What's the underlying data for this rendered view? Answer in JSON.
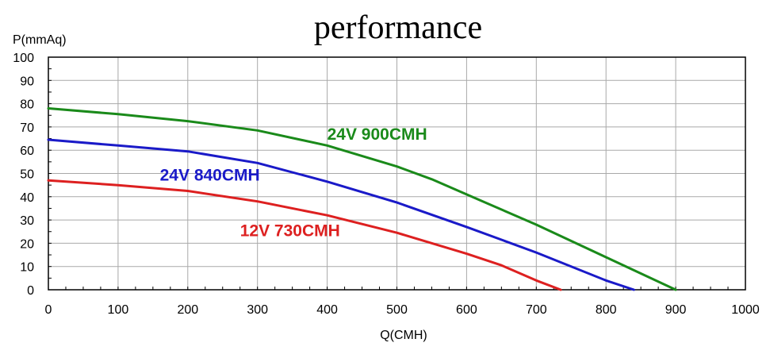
{
  "chart_data": {
    "type": "line",
    "title": "performance",
    "xlabel": "Q(CMH)",
    "ylabel": "P(mmAq)",
    "xlim": [
      0,
      1000
    ],
    "ylim": [
      0,
      100
    ],
    "x_ticks": [
      0,
      100,
      200,
      300,
      400,
      500,
      600,
      700,
      800,
      900,
      1000
    ],
    "y_ticks": [
      0,
      10,
      20,
      30,
      40,
      50,
      60,
      70,
      80,
      90,
      100
    ],
    "x_tick_labels": [
      "0",
      "100",
      "200",
      "300",
      "400",
      "500",
      "600",
      "700",
      "800",
      "900",
      "1000"
    ],
    "y_tick_labels": [
      "0",
      "10",
      "20",
      "30",
      "40",
      "50",
      "60",
      "70",
      "80",
      "90",
      "100"
    ],
    "grid": true,
    "series": [
      {
        "name": "24V 900CMH",
        "color": "#1a8a1a",
        "points": [
          [
            0,
            78
          ],
          [
            100,
            75.5
          ],
          [
            200,
            72.5
          ],
          [
            300,
            68.5
          ],
          [
            400,
            62
          ],
          [
            500,
            53
          ],
          [
            550,
            47.5
          ],
          [
            600,
            41
          ],
          [
            700,
            28
          ],
          [
            800,
            14
          ],
          [
            900,
            0
          ]
        ]
      },
      {
        "name": "24V 840CMH",
        "color": "#1a1ac8",
        "points": [
          [
            0,
            64.5
          ],
          [
            100,
            62
          ],
          [
            200,
            59.5
          ],
          [
            300,
            54.5
          ],
          [
            400,
            46.5
          ],
          [
            500,
            37.5
          ],
          [
            600,
            27
          ],
          [
            700,
            16
          ],
          [
            800,
            4
          ],
          [
            840,
            0
          ]
        ]
      },
      {
        "name": "12V 730CMH",
        "color": "#dd2020",
        "points": [
          [
            0,
            47
          ],
          [
            100,
            45
          ],
          [
            200,
            42.5
          ],
          [
            300,
            38
          ],
          [
            400,
            32
          ],
          [
            500,
            24.5
          ],
          [
            600,
            15.5
          ],
          [
            650,
            10.5
          ],
          [
            700,
            4
          ],
          [
            735,
            0
          ]
        ]
      }
    ],
    "annotations": [
      {
        "text": "24V 900CMH",
        "x": 400,
        "y": 64.5,
        "color": "#1a8a1a"
      },
      {
        "text": "24V 840CMH",
        "x": 160,
        "y": 47,
        "color": "#1a1ac8"
      },
      {
        "text": "12V 730CMH",
        "x": 275,
        "y": 23,
        "color": "#dd2020"
      }
    ]
  }
}
